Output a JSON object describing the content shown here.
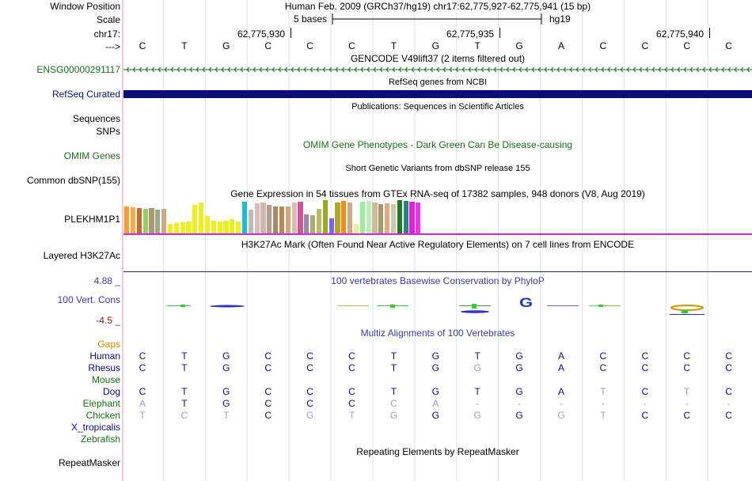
{
  "header": {
    "window_position_label": "Window Position",
    "scale_label": "Scale",
    "chrom_label": "chr17:",
    "strand_label": "--->",
    "title": "Human Feb. 2009 (GRCh37/hg19)   chr17:62,775,927-62,775,941 (15 bp)",
    "scale_text": "5 bases",
    "assembly": "hg19",
    "coord1": "62,775,930",
    "coord2": "62,775,935",
    "coord3": "62,775,940",
    "bases": [
      "C",
      "T",
      "G",
      "C",
      "C",
      "C",
      "T",
      "G",
      "T",
      "G",
      "A",
      "C",
      "C",
      "C",
      "C"
    ]
  },
  "tracks": {
    "gencode": {
      "title": "GENCODE V49lift37 (2 items filtered out)",
      "label": "ENSG00000291117",
      "color": "#1a6e1a"
    },
    "refseq": {
      "title": "RefSeq genes from NCBI",
      "label": "RefSeq Curated",
      "color": "#0c0c78"
    },
    "publications": {
      "title": "Publications: Sequences in Scientific Articles",
      "label": "Sequences"
    },
    "snps": {
      "label": "SNPs"
    },
    "omim": {
      "title": "OMIM Gene Phenotypes - Dark Green Can Be Disease-causing",
      "label": "OMIM Genes",
      "color": "#1a6e1a"
    },
    "dbsnp": {
      "title": "Short Genetic Variants from dbSNP release 155",
      "label": "Common dbSNP(155)"
    },
    "gtex": {
      "title": "Gene Expression in 54 tissues from GTEx RNA-seq of 17382 samples, 948 donors (V8, Aug 2019)",
      "label": "PLEKHM1P1",
      "bar_colors": [
        "#ff9933",
        "#ffaa44",
        "#cc6633",
        "#99cc66",
        "#aa9977",
        "#99aa88",
        "#ccaa88",
        "#eeee22",
        "#eeee22",
        "#eeee22",
        "#eeee22",
        "#eeee22",
        "#eeee22",
        "#eeee22",
        "#eeee22",
        "#eeee22",
        "#eeee22",
        "#eeee22",
        "#eeee22",
        "#22bbcc",
        "#bbbbbb",
        "#ddbbbb",
        "#ccbbaa",
        "#bb9988",
        "#aa8866",
        "#bb8855",
        "#ccaa77",
        "#ddbbaa",
        "#cc5599",
        "#9988aa",
        "#aaaa77",
        "#bbbb66",
        "#99aa22",
        "#7766ee",
        "#aaaa33",
        "#ff8811",
        "#ccaa88",
        "#eeee99",
        "#99ee99",
        "#bbeebb",
        "#ccbb99",
        "#aa9966",
        "#ddaa88",
        "#ccccaa",
        "#227722",
        "#228877",
        "#dd22dd",
        "#ee33ee"
      ],
      "bar_values": [
        0.8,
        0.78,
        0.76,
        0.74,
        0.76,
        0.72,
        0.74,
        0.28,
        0.32,
        0.34,
        0.35,
        0.86,
        0.92,
        0.52,
        0.38,
        0.36,
        0.38,
        0.42,
        0.36,
        0.95,
        0.72,
        0.9,
        0.92,
        0.85,
        0.8,
        0.82,
        0.8,
        0.94,
        0.96,
        0.56,
        0.54,
        0.74,
        1.0,
        0.45,
        0.93,
        0.98,
        0.92,
        0.28,
        0.96,
        0.98,
        0.93,
        0.88,
        0.9,
        0.88,
        1.0,
        0.98,
        0.96,
        0.94
      ]
    },
    "h3k27ac": {
      "title": "H3K27Ac Mark (Often Found Near Active Regulatory Elements) on 7 cell lines from ENCODE",
      "label": "Layered H3K27Ac",
      "color": "#1a2a6e"
    },
    "phylop": {
      "title": "100 vertebrates Basewise Conservation by PhyloP",
      "label": "100 Vert. Cons",
      "max": "4.88 _",
      "min": "-4.5 _",
      "color": "#3b3b9e",
      "min_color": "#8b1a1a"
    },
    "multiz": {
      "title": "Multiz Alignments of 100 Vertebrates",
      "gaps_label": "Gaps",
      "species": [
        {
          "name": "Human",
          "color": "#0c0c78",
          "bases": [
            "C",
            "T",
            "G",
            "C",
            "C",
            "C",
            "T",
            "G",
            "T",
            "G",
            "A",
            "C",
            "C",
            "C",
            "C"
          ]
        },
        {
          "name": "Rhesus",
          "color": "#0c0c78",
          "bases": [
            "C",
            "T",
            "G",
            "C",
            "C",
            "C",
            "T",
            "G",
            "G",
            "G",
            "A",
            "C",
            "C",
            "C",
            "C"
          ]
        },
        {
          "name": "Mouse",
          "color": "#1a6e1a",
          "bases": [
            "",
            "",
            "",
            "",
            "",
            "",
            "",
            "",
            "",
            "",
            "",
            "",
            "",
            "",
            ""
          ]
        },
        {
          "name": "Dog",
          "color": "#0c0c78",
          "bases": [
            "C",
            "T",
            "G",
            "C",
            "C",
            "C",
            "T",
            "G",
            "T",
            "G",
            "A",
            "T",
            "C",
            "T",
            "C"
          ]
        },
        {
          "name": "Elephant",
          "color": "#1a6e1a",
          "bases": [
            "A",
            "T",
            "G",
            "C",
            "C",
            "C",
            "C",
            "A",
            "-",
            "-",
            "-",
            "-",
            "-",
            "-",
            "-"
          ]
        },
        {
          "name": "Chicken",
          "color": "#1a6e1a",
          "bases": [
            "T",
            "C",
            "T",
            "C",
            "G",
            "T",
            "G",
            "G",
            "G",
            "G",
            "G",
            "T",
            "C",
            "C",
            "C"
          ]
        },
        {
          "name": "X_tropicalis",
          "color": "#0c0c78",
          "bases": [
            "",
            "",
            "",
            "",
            "",
            "",
            "",
            "",
            "",
            "",
            "",
            "",
            "",
            "",
            ""
          ]
        },
        {
          "name": "Zebrafish",
          "color": "#1a6e1a",
          "bases": [
            "",
            "",
            "",
            "",
            "",
            "",
            "",
            "",
            "",
            "",
            "",
            "",
            "",
            "",
            ""
          ]
        }
      ],
      "faint_mask": [
        [
          0,
          0,
          0,
          0,
          0,
          0,
          0,
          0,
          0,
          0,
          0,
          0,
          0,
          0,
          0
        ],
        [
          0,
          0,
          0,
          0,
          0,
          0,
          0,
          0,
          1,
          0,
          0,
          0,
          0,
          0,
          0
        ],
        [
          0,
          0,
          0,
          0,
          0,
          0,
          0,
          0,
          0,
          0,
          0,
          0,
          0,
          0,
          0
        ],
        [
          0,
          0,
          0,
          0,
          0,
          0,
          0,
          0,
          0,
          0,
          0,
          1,
          0,
          1,
          0
        ],
        [
          1,
          0,
          0,
          0,
          0,
          0,
          1,
          1,
          1,
          1,
          1,
          1,
          1,
          1,
          1
        ],
        [
          1,
          1,
          1,
          0,
          1,
          1,
          1,
          0,
          1,
          0,
          1,
          1,
          0,
          0,
          0
        ],
        [
          0,
          0,
          0,
          0,
          0,
          0,
          0,
          0,
          0,
          0,
          0,
          0,
          0,
          0,
          0
        ],
        [
          0,
          0,
          0,
          0,
          0,
          0,
          0,
          0,
          0,
          0,
          0,
          0,
          0,
          0,
          0
        ]
      ]
    },
    "repeatmasker": {
      "title": "Repeating Elements by RepeatMasker",
      "label": "RepeatMasker"
    }
  }
}
